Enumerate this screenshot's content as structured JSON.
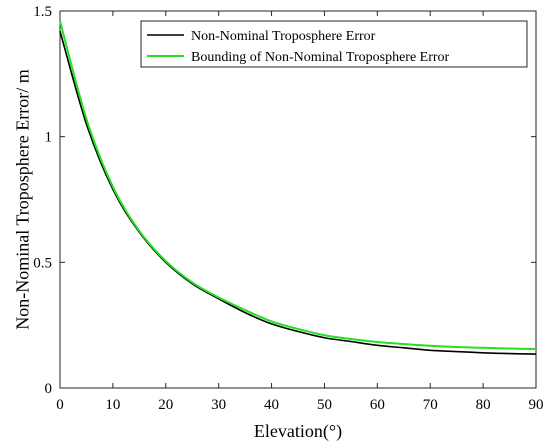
{
  "chart_data": {
    "type": "line",
    "title": "",
    "xlabel": "Elevation(°)",
    "ylabel": "Non-Nominal Troposphere Error/ m",
    "xlim": [
      0,
      90
    ],
    "ylim": [
      0,
      1.5
    ],
    "xticks": [
      0,
      10,
      20,
      30,
      40,
      50,
      60,
      70,
      80,
      90
    ],
    "yticks": [
      0,
      0.5,
      1,
      1.5
    ],
    "xtick_labels": [
      "0",
      "10",
      "20",
      "30",
      "40",
      "50",
      "60",
      "70",
      "80",
      "90"
    ],
    "ytick_labels": [
      "0",
      "0.5",
      "1",
      "1.5"
    ],
    "grid": false,
    "legend_position": "top-right",
    "x": [
      0,
      5,
      10,
      15,
      20,
      25,
      30,
      35,
      40,
      45,
      50,
      55,
      60,
      65,
      70,
      75,
      80,
      85,
      90
    ],
    "series": [
      {
        "name": "Non-Nominal Troposphere Error",
        "color": "#000000",
        "values": [
          1.42,
          1.05,
          0.79,
          0.62,
          0.5,
          0.415,
          0.355,
          0.3,
          0.255,
          0.225,
          0.2,
          0.185,
          0.17,
          0.16,
          0.15,
          0.145,
          0.14,
          0.137,
          0.135
        ]
      },
      {
        "name": "Bounding of Non-Nominal Troposphere Error",
        "color": "#22e022",
        "values": [
          1.46,
          1.07,
          0.8,
          0.625,
          0.505,
          0.42,
          0.36,
          0.31,
          0.265,
          0.235,
          0.21,
          0.195,
          0.183,
          0.175,
          0.168,
          0.163,
          0.16,
          0.157,
          0.155
        ]
      }
    ]
  }
}
